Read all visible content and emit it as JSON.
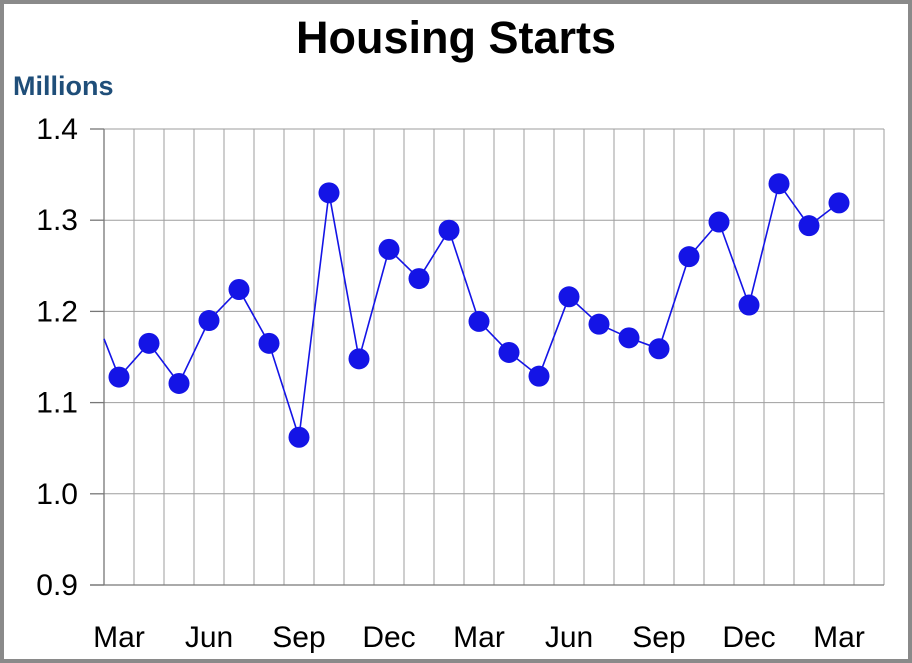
{
  "frame": {
    "background": "#ffffff",
    "border_color": "#8a8a8a"
  },
  "chart_data": {
    "type": "line",
    "title": "Housing Starts",
    "y_axis_title": "Millions",
    "xlabel": "",
    "ylabel": "Millions",
    "legend": "none",
    "grid": "both horizontal and vertical gridlines on",
    "ylim": [
      0.9,
      1.4
    ],
    "y_tick_step": 0.1,
    "y_tick_labels": [
      "1.4",
      "1.3",
      "1.2",
      "1.1",
      "1.0",
      "0.9"
    ],
    "x_tick_labels": [
      "Mar",
      "Jun",
      "Sep",
      "Dec",
      "Mar",
      "Jun",
      "Sep",
      "Dec",
      "Mar"
    ],
    "points_per_x_label": 3,
    "n_points": 25,
    "n_category_slots": 26,
    "leading_edge_value": 1.17,
    "values": [
      1.128,
      1.165,
      1.121,
      1.19,
      1.224,
      1.165,
      1.062,
      1.33,
      1.148,
      1.268,
      1.236,
      1.289,
      1.189,
      1.155,
      1.129,
      1.216,
      1.186,
      1.171,
      1.159,
      1.26,
      1.298,
      1.207,
      1.34,
      1.294,
      1.319
    ],
    "colors": {
      "series": "#1414e6",
      "gridline": "#9e9e9e",
      "axis": "#777777",
      "title": "#000000",
      "y_axis_title": "#1f4e79",
      "tick_label": "#000000"
    }
  }
}
